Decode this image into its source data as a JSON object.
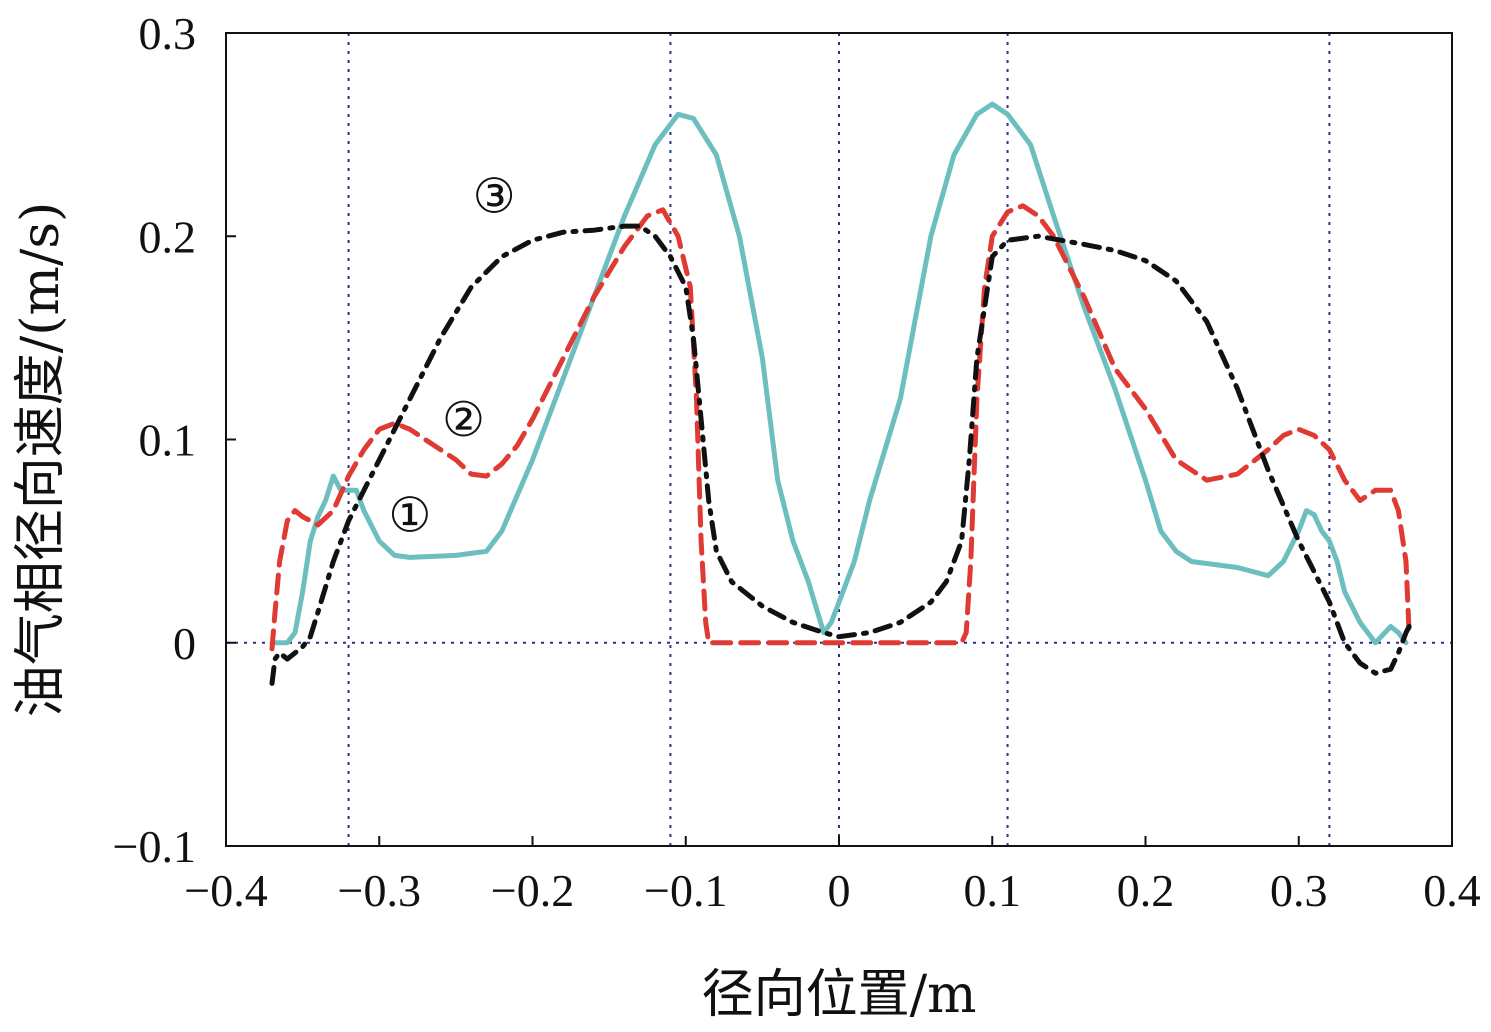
{
  "chart_data": {
    "type": "line",
    "title": "",
    "xlabel": "径向位置/m",
    "ylabel": "油气相径向速度/(m/s)",
    "xlim": [
      -0.4,
      0.4
    ],
    "ylim": [
      -0.1,
      0.3
    ],
    "x_ticks": [
      -0.4,
      -0.3,
      -0.2,
      -0.1,
      0,
      0.1,
      0.2,
      0.3,
      0.4
    ],
    "x_tick_labels": [
      "−0.4",
      "−0.3",
      "−0.2",
      "−0.1",
      "0",
      "0.1",
      "0.2",
      "0.3",
      "0.4"
    ],
    "y_ticks": [
      -0.1,
      0,
      0.1,
      0.2,
      0.3
    ],
    "y_tick_labels": [
      "−0.1",
      "0",
      "0.1",
      "0.2",
      "0.3"
    ],
    "grid": false,
    "reference_lines": {
      "vertical_x": [
        -0.32,
        -0.11,
        0,
        0.11,
        0.32
      ],
      "horizontal_y": [
        0
      ],
      "color": "#2b2f8f"
    },
    "series": [
      {
        "name": "",
        "annotation": "①",
        "color": "#6dbfbf",
        "style": "solid",
        "points": [
          [
            -0.37,
            -0.0
          ],
          [
            -0.365,
            0.0
          ],
          [
            -0.36,
            0.0
          ],
          [
            -0.355,
            0.005
          ],
          [
            -0.35,
            0.025
          ],
          [
            -0.345,
            0.05
          ],
          [
            -0.34,
            0.062
          ],
          [
            -0.335,
            0.07
          ],
          [
            -0.33,
            0.082
          ],
          [
            -0.325,
            0.075
          ],
          [
            -0.32,
            0.075
          ],
          [
            -0.315,
            0.075
          ],
          [
            -0.31,
            0.065
          ],
          [
            -0.3,
            0.05
          ],
          [
            -0.29,
            0.043
          ],
          [
            -0.28,
            0.042
          ],
          [
            -0.25,
            0.043
          ],
          [
            -0.23,
            0.045
          ],
          [
            -0.22,
            0.055
          ],
          [
            -0.2,
            0.09
          ],
          [
            -0.18,
            0.13
          ],
          [
            -0.16,
            0.17
          ],
          [
            -0.14,
            0.21
          ],
          [
            -0.12,
            0.245
          ],
          [
            -0.105,
            0.26
          ],
          [
            -0.095,
            0.258
          ],
          [
            -0.08,
            0.24
          ],
          [
            -0.065,
            0.2
          ],
          [
            -0.05,
            0.14
          ],
          [
            -0.04,
            0.08
          ],
          [
            -0.03,
            0.05
          ],
          [
            -0.02,
            0.03
          ],
          [
            -0.01,
            0.005
          ],
          [
            -0.005,
            0.01
          ],
          [
            0.0,
            0.02
          ],
          [
            0.01,
            0.04
          ],
          [
            0.02,
            0.07
          ],
          [
            0.04,
            0.12
          ],
          [
            0.05,
            0.16
          ],
          [
            0.06,
            0.2
          ],
          [
            0.075,
            0.24
          ],
          [
            0.09,
            0.26
          ],
          [
            0.1,
            0.265
          ],
          [
            0.11,
            0.26
          ],
          [
            0.125,
            0.245
          ],
          [
            0.14,
            0.21
          ],
          [
            0.16,
            0.165
          ],
          [
            0.18,
            0.125
          ],
          [
            0.2,
            0.08
          ],
          [
            0.21,
            0.055
          ],
          [
            0.22,
            0.045
          ],
          [
            0.23,
            0.04
          ],
          [
            0.26,
            0.037
          ],
          [
            0.28,
            0.033
          ],
          [
            0.29,
            0.04
          ],
          [
            0.3,
            0.055
          ],
          [
            0.305,
            0.065
          ],
          [
            0.31,
            0.063
          ],
          [
            0.315,
            0.055
          ],
          [
            0.32,
            0.05
          ],
          [
            0.325,
            0.04
          ],
          [
            0.33,
            0.025
          ],
          [
            0.34,
            0.01
          ],
          [
            0.35,
            0.0
          ],
          [
            0.36,
            0.008
          ],
          [
            0.365,
            0.005
          ],
          [
            0.37,
            0.0
          ]
        ]
      },
      {
        "name": "",
        "annotation": "②",
        "color": "#e03a34",
        "style": "dashed",
        "points": [
          [
            -0.37,
            -0.003
          ],
          [
            -0.368,
            0.015
          ],
          [
            -0.365,
            0.04
          ],
          [
            -0.36,
            0.06
          ],
          [
            -0.355,
            0.065
          ],
          [
            -0.35,
            0.062
          ],
          [
            -0.34,
            0.058
          ],
          [
            -0.33,
            0.065
          ],
          [
            -0.32,
            0.082
          ],
          [
            -0.31,
            0.095
          ],
          [
            -0.3,
            0.105
          ],
          [
            -0.29,
            0.108
          ],
          [
            -0.28,
            0.105
          ],
          [
            -0.27,
            0.1
          ],
          [
            -0.26,
            0.095
          ],
          [
            -0.25,
            0.09
          ],
          [
            -0.24,
            0.083
          ],
          [
            -0.23,
            0.082
          ],
          [
            -0.22,
            0.088
          ],
          [
            -0.21,
            0.097
          ],
          [
            -0.2,
            0.11
          ],
          [
            -0.18,
            0.14
          ],
          [
            -0.16,
            0.17
          ],
          [
            -0.14,
            0.195
          ],
          [
            -0.125,
            0.21
          ],
          [
            -0.115,
            0.213
          ],
          [
            -0.105,
            0.2
          ],
          [
            -0.097,
            0.175
          ],
          [
            -0.093,
            0.12
          ],
          [
            -0.09,
            0.05
          ],
          [
            -0.087,
            0.01
          ],
          [
            -0.085,
            0.0
          ],
          [
            -0.06,
            0.0
          ],
          [
            -0.02,
            0.0
          ],
          [
            0.0,
            0.0
          ],
          [
            0.04,
            0.0
          ],
          [
            0.08,
            0.0
          ],
          [
            0.083,
            0.005
          ],
          [
            0.086,
            0.04
          ],
          [
            0.09,
            0.12
          ],
          [
            0.095,
            0.175
          ],
          [
            0.1,
            0.2
          ],
          [
            0.11,
            0.212
          ],
          [
            0.12,
            0.215
          ],
          [
            0.13,
            0.21
          ],
          [
            0.14,
            0.2
          ],
          [
            0.16,
            0.17
          ],
          [
            0.18,
            0.135
          ],
          [
            0.2,
            0.115
          ],
          [
            0.22,
            0.09
          ],
          [
            0.24,
            0.08
          ],
          [
            0.26,
            0.083
          ],
          [
            0.28,
            0.095
          ],
          [
            0.29,
            0.102
          ],
          [
            0.3,
            0.105
          ],
          [
            0.31,
            0.102
          ],
          [
            0.32,
            0.095
          ],
          [
            0.33,
            0.08
          ],
          [
            0.34,
            0.07
          ],
          [
            0.35,
            0.075
          ],
          [
            0.36,
            0.075
          ],
          [
            0.365,
            0.065
          ],
          [
            0.37,
            0.04
          ],
          [
            0.372,
            0.005
          ]
        ]
      },
      {
        "name": "",
        "annotation": "③",
        "color": "#111111",
        "style": "dashdot",
        "points": [
          [
            -0.37,
            -0.02
          ],
          [
            -0.368,
            -0.008
          ],
          [
            -0.365,
            -0.005
          ],
          [
            -0.36,
            -0.008
          ],
          [
            -0.355,
            -0.005
          ],
          [
            -0.35,
            -0.002
          ],
          [
            -0.345,
            0.003
          ],
          [
            -0.34,
            0.015
          ],
          [
            -0.33,
            0.04
          ],
          [
            -0.32,
            0.06
          ],
          [
            -0.3,
            0.09
          ],
          [
            -0.28,
            0.12
          ],
          [
            -0.26,
            0.15
          ],
          [
            -0.24,
            0.175
          ],
          [
            -0.22,
            0.19
          ],
          [
            -0.2,
            0.198
          ],
          [
            -0.18,
            0.202
          ],
          [
            -0.16,
            0.203
          ],
          [
            -0.14,
            0.205
          ],
          [
            -0.13,
            0.205
          ],
          [
            -0.12,
            0.2
          ],
          [
            -0.11,
            0.19
          ],
          [
            -0.1,
            0.175
          ],
          [
            -0.095,
            0.15
          ],
          [
            -0.09,
            0.11
          ],
          [
            -0.085,
            0.07
          ],
          [
            -0.08,
            0.045
          ],
          [
            -0.07,
            0.03
          ],
          [
            -0.05,
            0.018
          ],
          [
            -0.03,
            0.01
          ],
          [
            -0.01,
            0.005
          ],
          [
            0.0,
            0.003
          ],
          [
            0.02,
            0.005
          ],
          [
            0.04,
            0.01
          ],
          [
            0.06,
            0.02
          ],
          [
            0.07,
            0.03
          ],
          [
            0.08,
            0.05
          ],
          [
            0.085,
            0.09
          ],
          [
            0.09,
            0.14
          ],
          [
            0.1,
            0.19
          ],
          [
            0.11,
            0.198
          ],
          [
            0.13,
            0.2
          ],
          [
            0.16,
            0.196
          ],
          [
            0.18,
            0.193
          ],
          [
            0.2,
            0.188
          ],
          [
            0.22,
            0.178
          ],
          [
            0.24,
            0.158
          ],
          [
            0.26,
            0.125
          ],
          [
            0.28,
            0.085
          ],
          [
            0.3,
            0.05
          ],
          [
            0.31,
            0.035
          ],
          [
            0.32,
            0.02
          ],
          [
            0.33,
            0.0
          ],
          [
            0.34,
            -0.01
          ],
          [
            0.35,
            -0.015
          ],
          [
            0.36,
            -0.013
          ],
          [
            0.365,
            -0.005
          ],
          [
            0.37,
            0.005
          ],
          [
            0.372,
            0.008
          ]
        ]
      }
    ],
    "annotations": [
      {
        "text": "①",
        "x": -0.28,
        "y": 0.063
      },
      {
        "text": "②",
        "x": -0.245,
        "y": 0.11
      },
      {
        "text": "③",
        "x": -0.225,
        "y": 0.22
      }
    ]
  }
}
